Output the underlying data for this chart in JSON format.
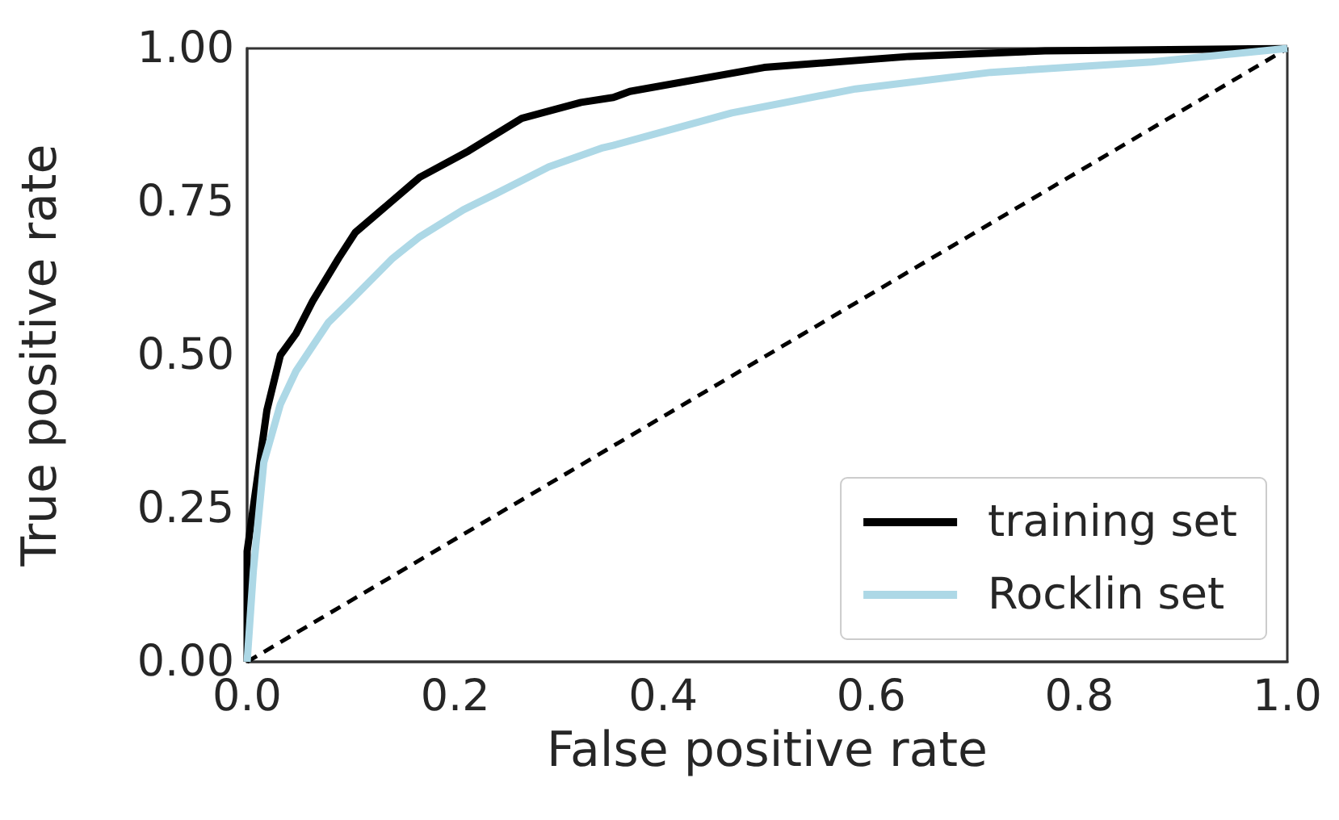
{
  "chart_data": {
    "type": "line",
    "xlabel": "False positive rate",
    "ylabel": "True positive rate",
    "xlim": [
      0,
      1
    ],
    "ylim": [
      0,
      1
    ],
    "xticks": [
      {
        "value": 0,
        "label": "0.0"
      },
      {
        "value": 0.2,
        "label": "0.2"
      },
      {
        "value": 0.4,
        "label": "0.4"
      },
      {
        "value": 0.6,
        "label": "0.6"
      },
      {
        "value": 0.8,
        "label": "0.8"
      },
      {
        "value": 1,
        "label": "1.0"
      }
    ],
    "yticks": [
      {
        "value": 0,
        "label": "0.00"
      },
      {
        "value": 0.25,
        "label": "0.25"
      },
      {
        "value": 0.5,
        "label": "0.50"
      },
      {
        "value": 0.75,
        "label": "0.75"
      },
      {
        "value": 1,
        "label": "1.00"
      }
    ],
    "grid": false,
    "legend": "bottom right",
    "marker": "none",
    "series": [
      {
        "name": "training set",
        "color": "#000000",
        "line_style": "solid",
        "x": [
          0,
          0,
          0.019,
          0.032,
          0.047,
          0.063,
          0.088,
          0.104,
          0.135,
          0.166,
          0.213,
          0.264,
          0.321,
          0.352,
          0.368,
          0.497,
          0.637,
          0.767,
          1
        ],
        "values": [
          0,
          0.18,
          0.41,
          0.5,
          0.535,
          0.588,
          0.658,
          0.7,
          0.745,
          0.79,
          0.833,
          0.886,
          0.912,
          0.92,
          0.93,
          0.969,
          0.987,
          0.996,
          1
        ]
      },
      {
        "name": "Rocklin set",
        "color": "#add8e6",
        "line_style": "solid",
        "x": [
          0,
          0.006,
          0.016,
          0.032,
          0.047,
          0.078,
          0.099,
          0.14,
          0.166,
          0.208,
          0.239,
          0.29,
          0.342,
          0.352,
          0.466,
          0.585,
          0.715,
          0.87,
          1
        ],
        "values": [
          0,
          0.149,
          0.325,
          0.42,
          0.474,
          0.553,
          0.588,
          0.658,
          0.693,
          0.737,
          0.763,
          0.807,
          0.838,
          0.842,
          0.895,
          0.934,
          0.961,
          0.978,
          1
        ]
      },
      {
        "color": "#000000",
        "line_style": "dashed",
        "x": [
          0,
          1
        ],
        "values": [
          0,
          1
        ]
      }
    ]
  }
}
